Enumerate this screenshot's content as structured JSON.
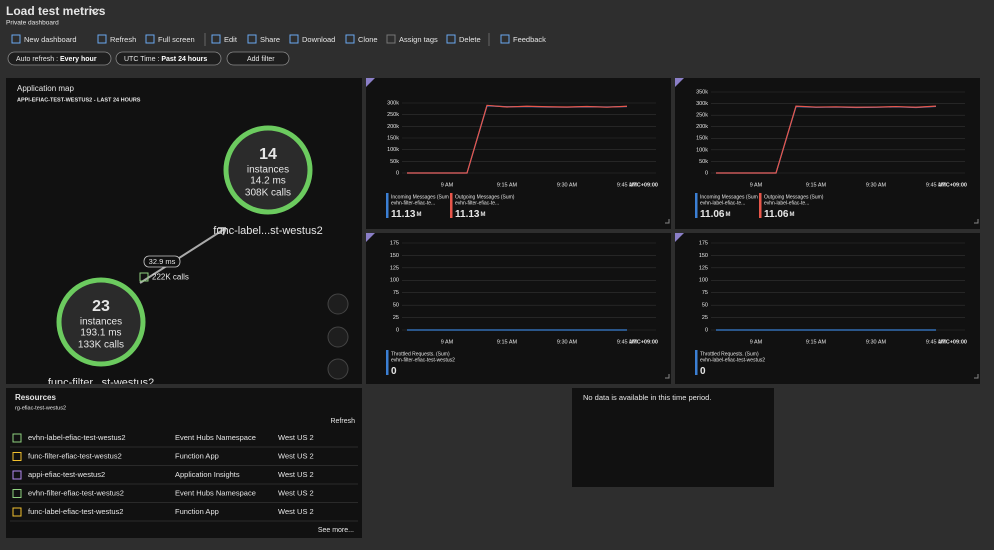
{
  "header": {
    "title": "Load test metrics",
    "subtitle": "Private dashboard"
  },
  "toolbar": [
    "New dashboard",
    "Refresh",
    "Full screen",
    "Edit",
    "Share",
    "Download",
    "Clone",
    "Assign tags",
    "Delete",
    "Feedback"
  ],
  "filters": [
    {
      "label": "Auto refresh :",
      "value": "Every hour"
    },
    {
      "label": "UTC Time :",
      "value": "Past 24 hours"
    },
    {
      "label": "Add filter"
    }
  ],
  "app_map": {
    "title": "Application map",
    "subtitle": "APPI-EFIAC-TEST-WESTUS2 - LAST 24 HOURS",
    "nodes": [
      {
        "count": "14",
        "unit": "instances",
        "duration": "14.2 ms",
        "calls": "308K calls",
        "name": "func-label...st-westus2"
      },
      {
        "count": "23",
        "unit": "instances",
        "duration": "193.1 ms",
        "calls": "133K calls",
        "name": "func-filter...st-westus2"
      }
    ],
    "edge": {
      "duration": "32.9 ms",
      "calls": "222K calls"
    }
  },
  "charts": [
    {
      "type": "line",
      "timezone": "UTC+09:00",
      "categories": [
        null,
        null,
        "9 AM",
        null,
        null,
        "9:15 AM",
        null,
        null,
        "9:30 AM",
        null,
        null,
        "9:45 AM"
      ],
      "ylim": [
        0,
        300000
      ],
      "yticks": [
        0,
        {
          "value": 50000,
          "label": "50k"
        },
        {
          "value": 100000,
          "label": "100k"
        },
        {
          "value": 150000,
          "label": "150k"
        },
        {
          "value": 200000,
          "label": "200k"
        },
        {
          "value": 250000,
          "label": "250k"
        },
        {
          "value": 300000,
          "label": "300k"
        }
      ],
      "series": [
        {
          "name": "Incoming Messages (Sum",
          "resource": "evhn-filter-efiac-te...",
          "total": "11.13",
          "unit": "M",
          "color": "#3b7fd4",
          "values": [
            0,
            0,
            0,
            0,
            288000,
            284000,
            285000,
            283000,
            282000,
            284000,
            283000,
            285000
          ]
        },
        {
          "name": "Outgoing Messages (Sum)",
          "resource": "evhn-filter-efiac-te...",
          "total": "11.13",
          "unit": "M",
          "color": "#e8564a",
          "values": [
            0,
            0,
            0,
            0,
            290000,
            283000,
            286000,
            284000,
            283000,
            285000,
            282000,
            286000
          ]
        }
      ]
    },
    {
      "type": "line",
      "timezone": "UTC+09:00",
      "categories": [
        null,
        null,
        "9 AM",
        null,
        null,
        "9:15 AM",
        null,
        null,
        "9:30 AM",
        null,
        null,
        "9:45 AM"
      ],
      "ylim": [
        0,
        350000
      ],
      "yticks": [
        0,
        {
          "value": 50000,
          "label": "50k"
        },
        {
          "value": 100000,
          "label": "100k"
        },
        {
          "value": 150000,
          "label": "150k"
        },
        {
          "value": 200000,
          "label": "200k"
        },
        {
          "value": 250000,
          "label": "250k"
        },
        {
          "value": 300000,
          "label": "300k"
        },
        {
          "value": 350000,
          "label": "350k"
        }
      ],
      "series": [
        {
          "name": "Incoming Messages (Sum",
          "resource": "evhn-label-efiac-te...",
          "total": "11.06",
          "unit": "M",
          "color": "#3b7fd4",
          "values": [
            0,
            0,
            0,
            0,
            287000,
            284000,
            285000,
            283000,
            284000,
            286000,
            283000,
            288000
          ]
        },
        {
          "name": "Outgoing Messages (Sum)",
          "resource": "evhn-label-efiac-te...",
          "total": "11.06",
          "unit": "M",
          "color": "#e8564a",
          "values": [
            0,
            0,
            0,
            0,
            289000,
            285000,
            286000,
            284000,
            285000,
            287000,
            284000,
            289000
          ]
        }
      ]
    },
    {
      "type": "line",
      "timezone": "UTC+09:00",
      "categories": [
        null,
        null,
        "9 AM",
        null,
        null,
        "9:15 AM",
        null,
        null,
        "9:30 AM",
        null,
        null,
        "9:45 AM"
      ],
      "ylim": [
        0,
        175
      ],
      "yticks": [
        0,
        25,
        50,
        75,
        100,
        125,
        150,
        175
      ],
      "series": [
        {
          "name": "Throttled Requests. (Sum)",
          "resource": "evhn-filter-efiac-test-westus2",
          "total": "0",
          "color": "#3b7fd4",
          "values": [
            0,
            0,
            0,
            0,
            0,
            0,
            0,
            0,
            0,
            0,
            0,
            0
          ]
        }
      ]
    },
    {
      "type": "line",
      "timezone": "UTC+09:00",
      "categories": [
        null,
        null,
        "9 AM",
        null,
        null,
        "9:15 AM",
        null,
        null,
        "9:30 AM",
        null,
        null,
        "9:45 AM"
      ],
      "ylim": [
        0,
        175
      ],
      "yticks": [
        0,
        25,
        50,
        75,
        100,
        125,
        150,
        175
      ],
      "series": [
        {
          "name": "Throttled Requests. (Sum)",
          "resource": "evhn-label-efiac-test-westus2",
          "total": "0",
          "color": "#3b7fd4",
          "values": [
            0,
            0,
            0,
            0,
            0,
            0,
            0,
            0,
            0,
            0,
            0,
            0
          ]
        }
      ]
    }
  ],
  "resources": {
    "title": "Resources",
    "subtitle": "rg-efiac-test-westus2",
    "refresh": "Refresh",
    "more": "See more...",
    "rows": [
      [
        "evhn-label-efiac-test-westus2",
        "Event Hubs Namespace",
        "West US 2"
      ],
      [
        "func-filter-efiac-test-westus2",
        "Function App",
        "West US 2"
      ],
      [
        "appi-efiac-test-westus2",
        "Application Insights",
        "West US 2"
      ],
      [
        "evhn-filter-efiac-test-westus2",
        "Event Hubs Namespace",
        "West US 2"
      ],
      [
        "func-label-efiac-test-westus2",
        "Function App",
        "West US 2"
      ]
    ]
  },
  "no_data": "No data is available in this time period."
}
